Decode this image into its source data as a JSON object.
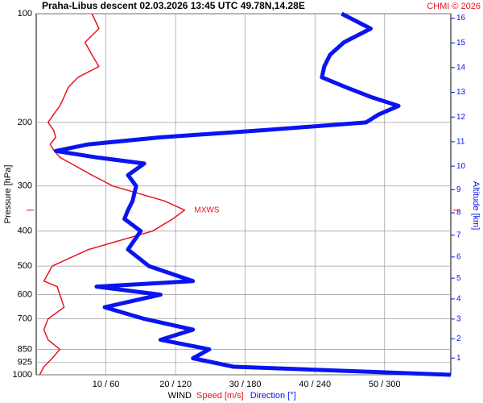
{
  "chart_data": {
    "type": "profile",
    "title": "Praha-Libus   descent   02.03.2026 13:45 UTC  49.78N,14.28E",
    "credit": "CHMI © 2026",
    "ylabel": "Pressure [hPa]",
    "y2label": "Altitude [km]",
    "xlabel": "WIND",
    "annotation": "MXWS",
    "log_y": true,
    "grid": true,
    "ylim": [
      100,
      1000
    ],
    "yticks": [
      100,
      200,
      300,
      400,
      500,
      600,
      700,
      850,
      925,
      1000
    ],
    "xlim": [
      0,
      59.5
    ],
    "xticks": [
      {
        "value": 10,
        "label": "10 / 60"
      },
      {
        "value": 20,
        "label": "20 / 120"
      },
      {
        "value": 30,
        "label": "30 / 180"
      },
      {
        "value": 40,
        "label": "40 / 240"
      },
      {
        "value": 50,
        "label": "50 / 300"
      }
    ],
    "x2lim": [
      0,
      357
    ],
    "y2ticks": [
      1,
      2,
      3,
      4,
      5,
      6,
      7,
      8,
      9,
      10,
      11,
      12,
      13,
      14,
      15,
      16
    ],
    "y": [
      100,
      110,
      120,
      130,
      140,
      150,
      160,
      170,
      180,
      190,
      200,
      210,
      220,
      230,
      240,
      250,
      260,
      280,
      300,
      330,
      350,
      370,
      400,
      450,
      500,
      550,
      570,
      600,
      650,
      700,
      750,
      800,
      850,
      900,
      950,
      1000
    ],
    "series": [
      {
        "name": "Speed [m/s]",
        "color": "#e8141e",
        "values": [
          8,
          9,
          7,
          8,
          9,
          6,
          4.6,
          4,
          3.4,
          2.5,
          1.7,
          2.5,
          2.8,
          2,
          2.6,
          3.4,
          5,
          8,
          11,
          18.4,
          21.3,
          19.6,
          16.7,
          7.5,
          2.3,
          1.1,
          3,
          3.4,
          4,
          1.7,
          1.1,
          1.7,
          3.4,
          2.3,
          1.1,
          0.5
        ]
      },
      {
        "name": "Direction [°]",
        "color": "#0a14f0",
        "axis": "x2",
        "values": [
          263,
          288,
          265,
          253,
          248,
          246,
          267,
          288,
          312,
          295,
          284,
          197,
          107,
          45,
          17,
          52,
          93,
          79,
          86,
          83,
          79,
          76,
          90,
          79,
          97,
          135,
          52,
          107,
          59,
          93,
          135,
          107,
          149,
          135,
          170,
          357
        ]
      }
    ]
  }
}
